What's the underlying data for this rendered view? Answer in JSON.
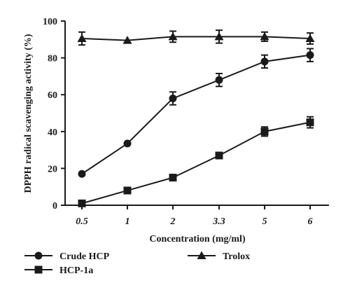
{
  "chart_data": {
    "type": "line",
    "title": "",
    "xlabel": "Concentration (mg/ml)",
    "ylabel": "DPPH radical scavenging activity (%)",
    "categories": [
      "0.5",
      "1",
      "2",
      "3.3",
      "5",
      "6"
    ],
    "ylim": [
      0,
      100
    ],
    "yticks": [
      "0",
      "20",
      "40",
      "60",
      "80",
      "100"
    ],
    "grid": false,
    "legend_position": "bottom",
    "series": [
      {
        "name": "Crude HCP",
        "marker": "circle",
        "values": [
          17,
          33.5,
          58,
          68,
          78,
          81.5
        ],
        "errors": [
          0,
          0,
          3.5,
          3.5,
          3.5,
          3.5
        ]
      },
      {
        "name": "HCP-1a",
        "marker": "square",
        "values": [
          1,
          8,
          15,
          27,
          40,
          45
        ],
        "errors": [
          0,
          0,
          0,
          0,
          2.5,
          3
        ]
      },
      {
        "name": "Trolox",
        "marker": "triangle",
        "values": [
          90.5,
          89.5,
          91.5,
          91.5,
          91.5,
          90.5
        ],
        "errors": [
          3.5,
          0,
          3,
          3.5,
          2.5,
          3
        ]
      }
    ]
  }
}
